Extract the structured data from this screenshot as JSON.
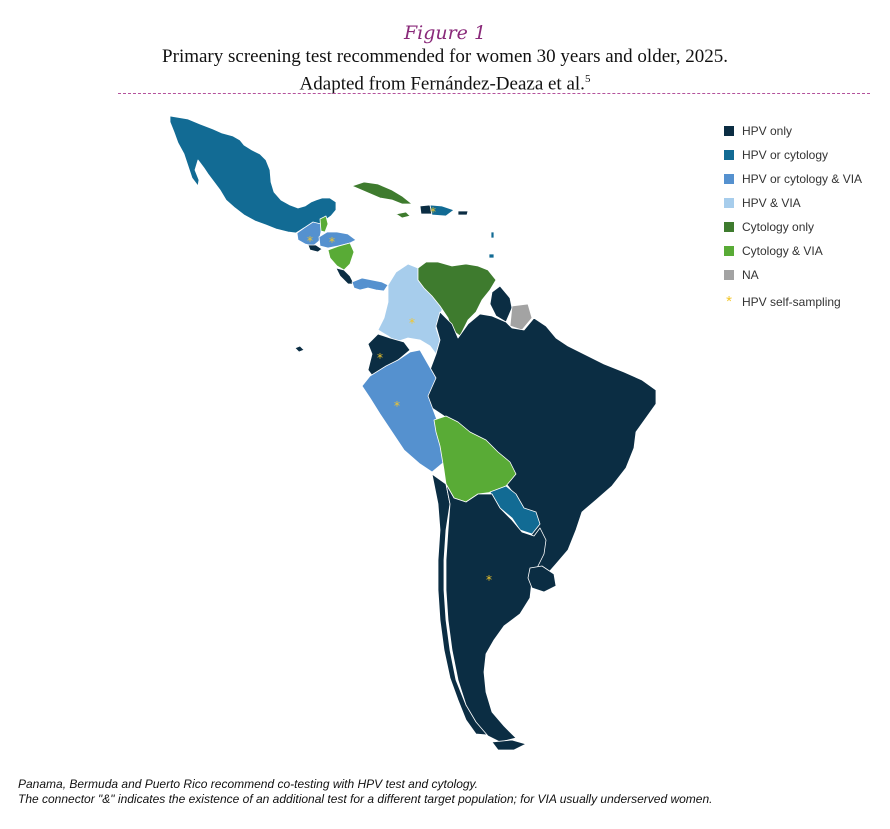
{
  "figure": {
    "label": "Figure 1",
    "title_line1": "Primary screening test recommended for women 30 years and older, 2025.",
    "title_line2": "Adapted from Fernández-Deaza et al.",
    "reference_number": "5"
  },
  "colors": {
    "hpv_only": "#0b2d43",
    "hpv_or_cytology": "#126b94",
    "hpv_or_cytology_via": "#5591cf",
    "hpv_via": "#a7cdec",
    "cytology_only": "#3e7b2e",
    "cytology_via": "#59ab36",
    "na": "#a3a3a3",
    "self_sampling_marker": "#f2c62a"
  },
  "legend": {
    "items": [
      {
        "label": "HPV only",
        "color": "#0b2d43"
      },
      {
        "label": "HPV or cytology",
        "color": "#126b94"
      },
      {
        "label": "HPV or cytology & VIA",
        "color": "#5591cf"
      },
      {
        "label": "HPV & VIA",
        "color": "#a7cdec"
      },
      {
        "label": "Cytology only",
        "color": "#3e7b2e"
      },
      {
        "label": "Cytology & VIA",
        "color": "#59ab36"
      },
      {
        "label": "NA",
        "color": "#a3a3a3"
      }
    ],
    "self_sampling_label": "HPV self-sampling"
  },
  "footnote": {
    "line1": "Panama, Bermuda and Puerto Rico recommend co-testing with HPV test and cytology.",
    "line2": "The connector \"&\" indicates the existence of an additional test for a different target population; for VIA usually underserved women."
  }
}
